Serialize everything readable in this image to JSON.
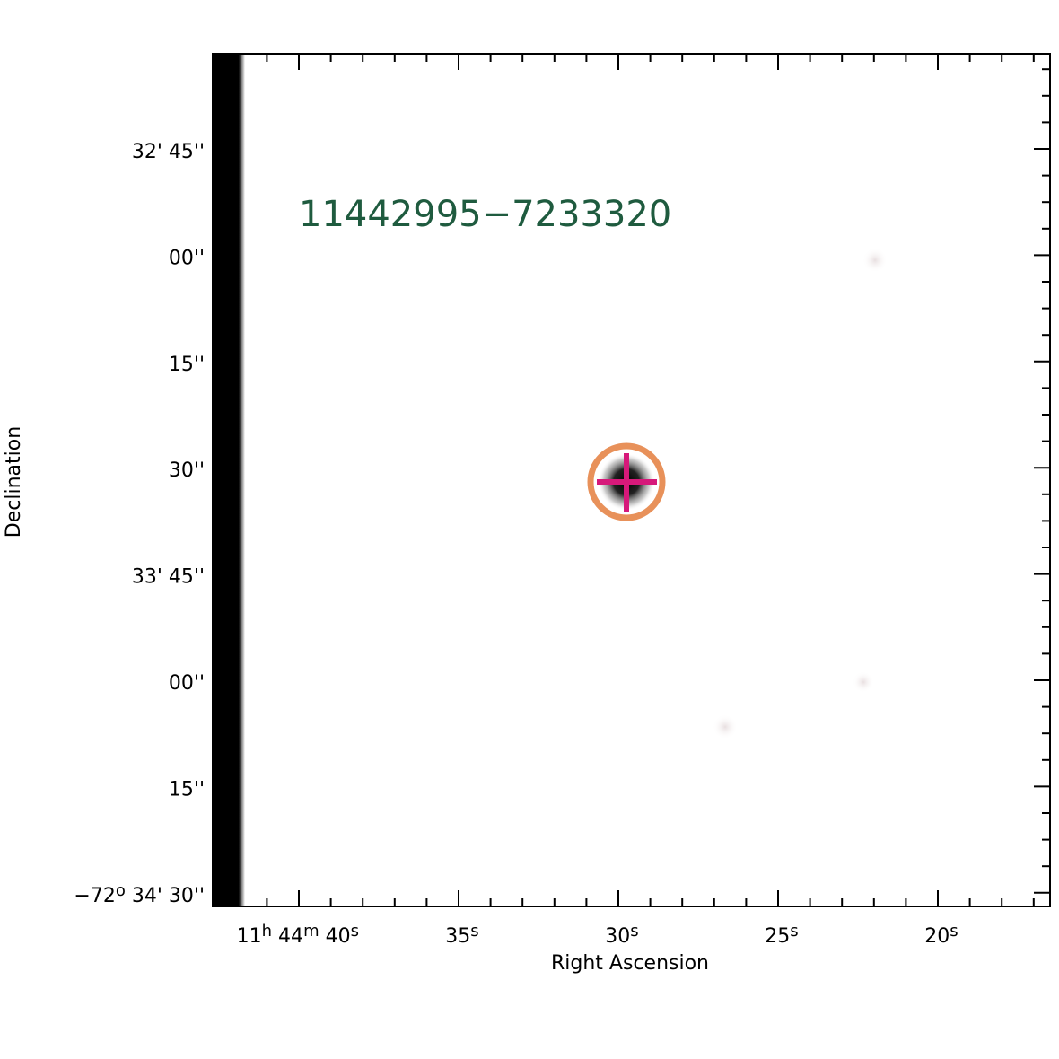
{
  "figure": {
    "source_label": "11442995−7233320",
    "x_axis": {
      "label": "Right Ascension",
      "ticks": [
        [
          "11",
          "h",
          " 44",
          "m",
          " 40",
          "s"
        ],
        [
          "35",
          "s"
        ],
        [
          "30",
          "s"
        ],
        [
          "25",
          "s"
        ],
        [
          "20",
          "s"
        ]
      ]
    },
    "y_axis": {
      "label": "Declination",
      "ticks": [
        [
          "32' 45''"
        ],
        [
          "00''"
        ],
        [
          "15''"
        ],
        [
          "30''"
        ],
        [
          "33' 45''"
        ],
        [
          "00''"
        ],
        [
          "15''"
        ],
        [
          "−72",
          "o",
          " 34' 30''"
        ]
      ]
    }
  }
}
